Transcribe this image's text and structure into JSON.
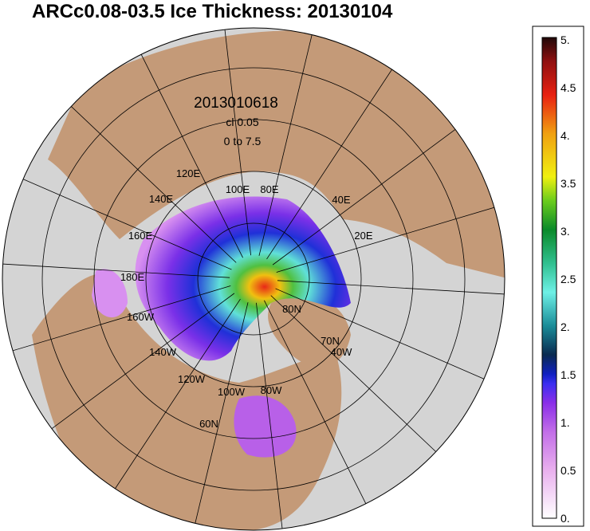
{
  "title": "ARCc0.08-03.5 Ice Thickness: 20130104",
  "annotations": [
    "2013010618",
    "cl 0.05",
    "0 to 7.5"
  ],
  "grid_labels": [
    "120E",
    "140E",
    "100E",
    "80E",
    "40E",
    "20E",
    "160E",
    "180E",
    "160W",
    "140W",
    "120W",
    "100W",
    "80W",
    "60N",
    "80N",
    "70N",
    "40W"
  ],
  "colorbar": {
    "labels": [
      "5.",
      "4.5",
      "4.",
      "3.5",
      "3.",
      "2.5",
      "2.",
      "1.5",
      "1.",
      "0.5",
      "0."
    ]
  }
}
